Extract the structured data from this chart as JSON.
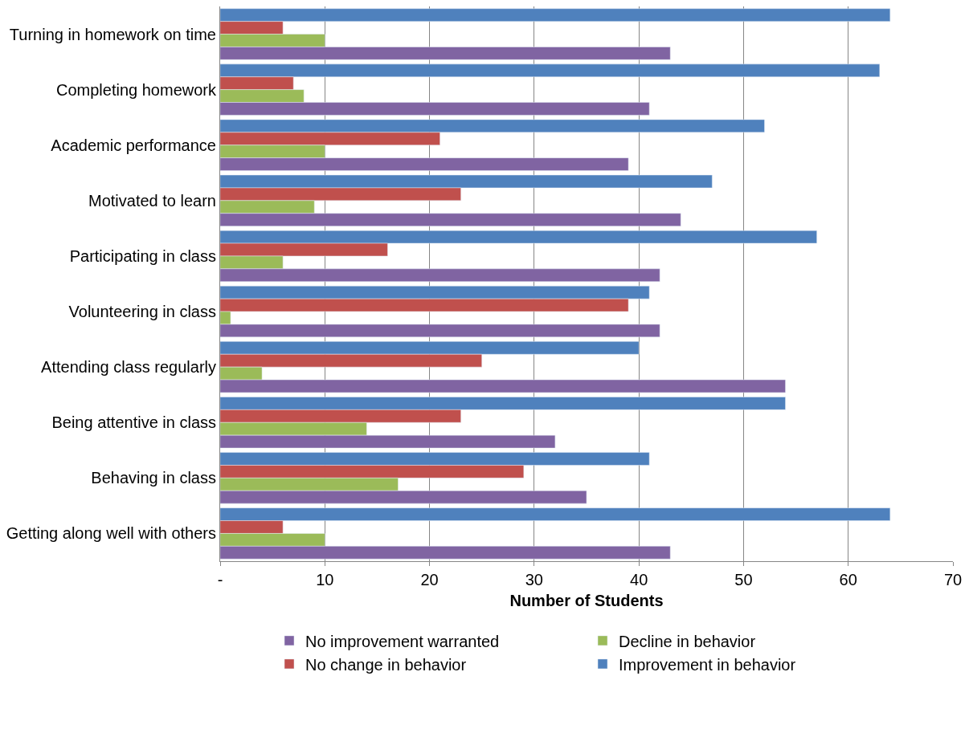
{
  "chart_data": {
    "type": "bar",
    "orientation": "horizontal",
    "xlabel": "Number of Students",
    "categories": [
      "Turning in homework on time",
      "Completing homework",
      "Academic performance",
      "Motivated to learn",
      "Participating in class",
      "Volunteering in class",
      "Attending class regularly",
      "Being attentive in class",
      "Behaving in class",
      "Getting along well with others"
    ],
    "series": [
      {
        "name": "Improvement in behavior",
        "color": "#4f81bd",
        "values": [
          64,
          63,
          52,
          47,
          57,
          41,
          40,
          54,
          41,
          64
        ]
      },
      {
        "name": "No change in behavior",
        "color": "#c0504d",
        "values": [
          6,
          7,
          21,
          23,
          16,
          39,
          25,
          23,
          29,
          6
        ]
      },
      {
        "name": "Decline in behavior",
        "color": "#9bbb59",
        "values": [
          10,
          8,
          10,
          9,
          6,
          1,
          4,
          14,
          17,
          10
        ]
      },
      {
        "name": "No improvement warranted",
        "color": "#8064a2",
        "values": [
          43,
          41,
          39,
          44,
          42,
          42,
          54,
          32,
          35,
          43
        ]
      }
    ],
    "xlim": [
      0,
      70
    ],
    "xticks": [
      {
        "value": 0,
        "label": "-"
      },
      10,
      20,
      30,
      40,
      50,
      60,
      70
    ],
    "grid": "x",
    "legend": "bottom"
  }
}
